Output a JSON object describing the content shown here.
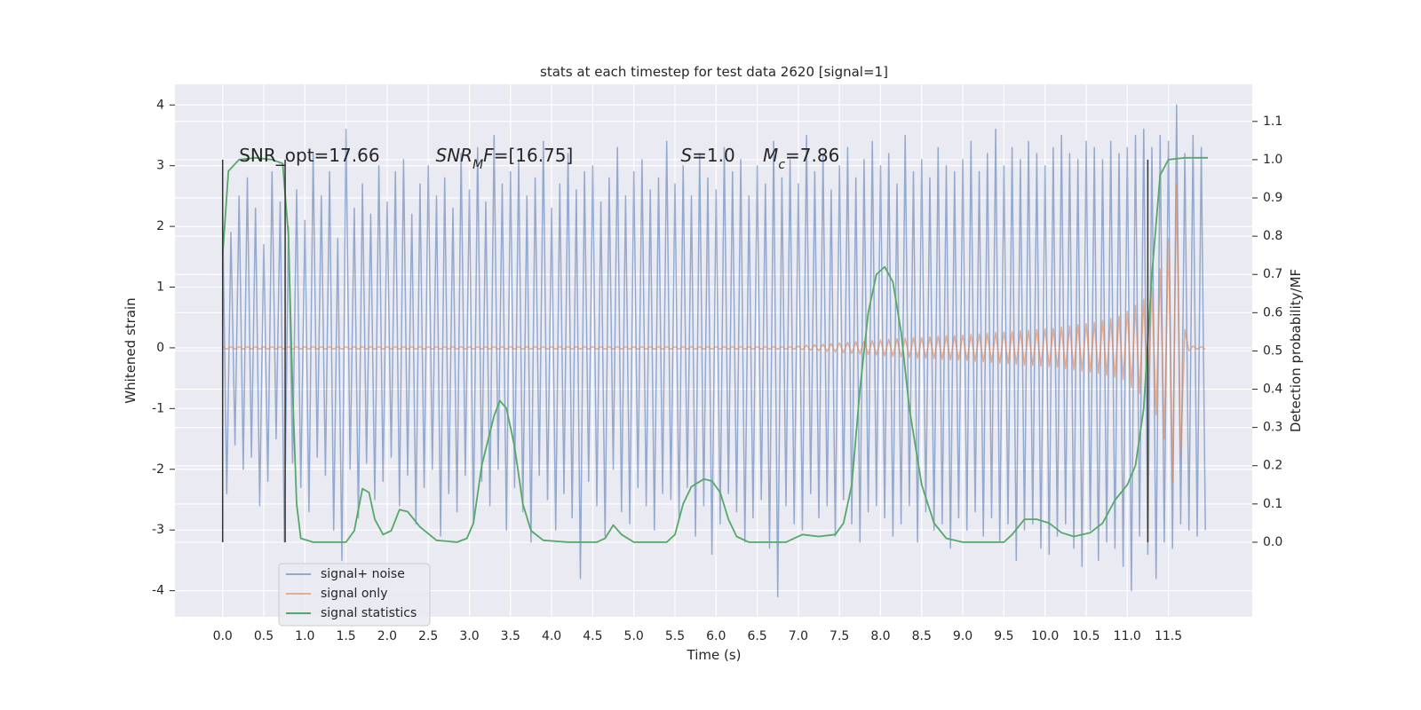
{
  "chart_data": {
    "type": "line",
    "title": "stats at each timestep for test data 2620 [signal=1]",
    "xlabel": "Time (s)",
    "ylabel": "Whitened strain",
    "y2label": "Detection probability/MF",
    "background": "#eaeaf2",
    "grid": true,
    "legend": "lower left",
    "xlim": [
      -0.58,
      12.52
    ],
    "ylim": [
      -4.43,
      4.34
    ],
    "y2lim": [
      -0.195,
      1.197
    ],
    "xticks": [
      {
        "value": 0,
        "label": "0.0"
      },
      0.5,
      {
        "value": 1,
        "label": "1.0"
      },
      1.5,
      {
        "value": 2,
        "label": "2.0"
      },
      2.5,
      {
        "value": 3,
        "label": "3.0"
      },
      3.5,
      {
        "value": 4,
        "label": "4.0"
      },
      4.5,
      {
        "value": 5,
        "label": "5.0"
      },
      5.5,
      {
        "value": 6,
        "label": "6.0"
      },
      6.5,
      {
        "value": 7,
        "label": "7.0"
      },
      7.5,
      {
        "value": 8,
        "label": "8.0"
      },
      8.5,
      {
        "value": 9,
        "label": "9.0"
      },
      9.5,
      {
        "value": 10,
        "label": "10.0"
      },
      10.5,
      {
        "value": 11,
        "label": "11.0"
      },
      11.5
    ],
    "yticks": [
      -4,
      -3,
      -2,
      -1,
      0,
      1,
      2,
      3,
      4
    ],
    "y2ticks": [
      {
        "value": 0,
        "label": "0.0"
      },
      0.1,
      0.2,
      0.3,
      0.4,
      0.5,
      0.6,
      0.7,
      0.8,
      0.9,
      {
        "value": 1,
        "label": "1.0"
      },
      1.1
    ],
    "x": [
      0,
      0.05,
      0.1,
      0.15,
      0.2,
      0.25,
      0.3,
      0.35,
      0.4,
      0.45,
      0.5,
      0.55,
      0.6,
      0.65,
      0.7,
      0.75,
      0.8,
      0.85,
      0.9,
      0.95,
      1,
      1.05,
      1.1,
      1.15,
      1.2,
      1.25,
      1.3,
      1.35,
      1.4,
      1.45,
      1.5,
      1.55,
      1.6,
      1.65,
      1.7,
      1.75,
      1.8,
      1.85,
      1.9,
      1.95,
      2,
      2.05,
      2.1,
      2.15,
      2.2,
      2.25,
      2.3,
      2.35,
      2.4,
      2.45,
      2.5,
      2.55,
      2.6,
      2.65,
      2.7,
      2.75,
      2.8,
      2.85,
      2.9,
      2.95,
      3,
      3.05,
      3.1,
      3.15,
      3.2,
      3.25,
      3.3,
      3.35,
      3.4,
      3.45,
      3.5,
      3.55,
      3.6,
      3.65,
      3.7,
      3.75,
      3.8,
      3.85,
      3.9,
      3.95,
      4,
      4.05,
      4.1,
      4.15,
      4.2,
      4.25,
      4.3,
      4.35,
      4.4,
      4.45,
      4.5,
      4.55,
      4.6,
      4.65,
      4.7,
      4.75,
      4.8,
      4.85,
      4.9,
      4.95,
      5,
      5.05,
      5.1,
      5.15,
      5.2,
      5.25,
      5.3,
      5.35,
      5.4,
      5.45,
      5.5,
      5.55,
      5.6,
      5.65,
      5.7,
      5.75,
      5.8,
      5.85,
      5.9,
      5.95,
      6,
      6.05,
      6.1,
      6.15,
      6.2,
      6.25,
      6.3,
      6.35,
      6.4,
      6.45,
      6.5,
      6.55,
      6.6,
      6.65,
      6.7,
      6.75,
      6.8,
      6.85,
      6.9,
      6.95,
      7,
      7.05,
      7.1,
      7.15,
      7.2,
      7.25,
      7.3,
      7.35,
      7.4,
      7.45,
      7.5,
      7.55,
      7.6,
      7.65,
      7.7,
      7.75,
      7.8,
      7.85,
      7.9,
      7.95,
      8,
      8.05,
      8.1,
      8.15,
      8.2,
      8.25,
      8.3,
      8.35,
      8.4,
      8.45,
      8.5,
      8.55,
      8.6,
      8.65,
      8.7,
      8.75,
      8.8,
      8.85,
      8.9,
      8.95,
      9,
      9.05,
      9.1,
      9.15,
      9.2,
      9.25,
      9.3,
      9.35,
      9.4,
      9.45,
      9.5,
      9.55,
      9.6,
      9.65,
      9.7,
      9.75,
      9.8,
      9.85,
      9.9,
      9.95,
      10,
      10.05,
      10.1,
      10.15,
      10.2,
      10.25,
      10.3,
      10.35,
      10.4,
      10.45,
      10.5,
      10.55,
      10.6,
      10.65,
      10.7,
      10.75,
      10.8,
      10.85,
      10.9,
      10.95,
      11,
      11.05,
      11.1,
      11.15,
      11.2,
      11.25,
      11.3,
      11.35,
      11.4,
      11.45,
      11.5,
      11.55,
      11.6,
      11.65,
      11.7,
      11.75,
      11.8,
      11.85,
      11.9,
      11.95
    ],
    "series": [
      {
        "name": "signal+ noise",
        "color": "#4c72b0",
        "opacity": 0.55,
        "values": [
          2.2,
          -2.4,
          1.9,
          -1.6,
          2.5,
          -2.0,
          2.8,
          -1.8,
          2.3,
          -2.6,
          1.7,
          -2.2,
          2.9,
          -1.5,
          2.4,
          -3.2,
          2.0,
          -1.9,
          2.6,
          -2.3,
          2.1,
          -2.7,
          3.2,
          -1.8,
          2.5,
          -2.1,
          2.9,
          -3.0,
          1.8,
          -3.5,
          3.6,
          -2.0,
          2.3,
          -2.8,
          2.7,
          -1.9,
          2.2,
          -2.5,
          3.0,
          -2.2,
          2.4,
          -1.8,
          2.9,
          -2.6,
          3.1,
          -2.1,
          2.2,
          -2.9,
          2.7,
          -2.3,
          3.0,
          -2.0,
          2.5,
          -3.1,
          2.8,
          -2.4,
          2.3,
          -2.7,
          3.2,
          -2.1,
          2.6,
          -2.9,
          3.3,
          -2.2,
          2.4,
          -2.6,
          3.5,
          -2.0,
          2.7,
          -3.0,
          2.9,
          -2.3,
          3.1,
          -2.7,
          2.5,
          -3.2,
          2.8,
          -2.1,
          3.4,
          -2.5,
          2.3,
          -3.0,
          2.7,
          -2.4,
          3.2,
          -2.8,
          2.6,
          -3.8,
          2.9,
          -2.2,
          3.0,
          -2.6,
          2.4,
          -3.1,
          2.8,
          -2.0,
          3.3,
          -2.7,
          2.5,
          -2.9,
          2.9,
          -2.3,
          3.1,
          -2.6,
          2.6,
          -3.0,
          2.8,
          -2.4,
          3.4,
          -2.5,
          2.7,
          -2.8,
          3.0,
          -2.3,
          2.5,
          -3.1,
          3.2,
          -2.6,
          2.8,
          -3.4,
          2.6,
          -2.9,
          3.3,
          -2.4,
          2.9,
          -2.7,
          3.1,
          -3.2,
          2.5,
          -2.8,
          3.0,
          -2.5,
          2.7,
          -3.3,
          3.4,
          -4.1,
          2.8,
          -2.6,
          3.1,
          -2.9,
          2.7,
          -3.0,
          3.5,
          -2.4,
          2.9,
          -2.8,
          3.2,
          -2.6,
          2.6,
          -3.1,
          3.0,
          -2.5,
          3.3,
          -2.9,
          2.8,
          -3.2,
          3.1,
          -2.7,
          3.4,
          -2.6,
          3.0,
          -2.8,
          3.2,
          -3.1,
          2.7,
          -2.9,
          3.5,
          -2.6,
          2.9,
          -3.2,
          3.1,
          -2.7,
          2.8,
          -3.0,
          3.3,
          -2.9,
          3.0,
          -3.3,
          2.9,
          -2.8,
          3.1,
          -3.0,
          3.4,
          -2.7,
          2.9,
          -3.1,
          3.2,
          -2.8,
          3.6,
          -3.2,
          3.0,
          -2.9,
          3.3,
          -3.5,
          3.1,
          -3.0,
          3.4,
          -2.9,
          3.2,
          -3.3,
          3.0,
          -3.4,
          3.3,
          -3.1,
          3.5,
          -2.9,
          3.2,
          -3.3,
          3.1,
          -3.6,
          3.4,
          -3.0,
          3.3,
          -3.5,
          3.1,
          -3.2,
          3.4,
          -3.3,
          3.2,
          -3.6,
          3.3,
          -4.0,
          3.5,
          -3.1,
          3.6,
          -3.4,
          3.3,
          -3.8,
          3.5,
          -3.2,
          3.4,
          -3.3,
          4.0,
          -2.9,
          3.2,
          -3.0,
          3.5,
          -3.1,
          3.3,
          -3.0
        ]
      },
      {
        "name": "signal only",
        "color": "#dd8452",
        "opacity": 0.6,
        "values": [
          0.02,
          -0.02,
          0.02,
          -0.02,
          0.02,
          -0.02,
          0.02,
          -0.02,
          0.02,
          -0.02,
          0.02,
          -0.02,
          0.02,
          -0.02,
          0.02,
          -0.02,
          0.02,
          -0.02,
          0.02,
          -0.02,
          0.02,
          -0.02,
          0.02,
          -0.02,
          0.02,
          -0.02,
          0.02,
          -0.02,
          0.02,
          -0.02,
          0.02,
          -0.02,
          0.02,
          -0.02,
          0.02,
          -0.02,
          0.02,
          -0.02,
          0.02,
          -0.02,
          0.02,
          -0.02,
          0.02,
          -0.02,
          0.02,
          -0.02,
          0.02,
          -0.02,
          0.02,
          -0.02,
          0.02,
          -0.02,
          0.02,
          -0.02,
          0.02,
          -0.02,
          0.02,
          -0.02,
          0.02,
          -0.02,
          0.02,
          -0.02,
          0.02,
          -0.02,
          0.02,
          -0.02,
          0.02,
          -0.02,
          0.02,
          -0.02,
          0.02,
          -0.02,
          0.02,
          -0.02,
          0.02,
          -0.02,
          0.02,
          -0.02,
          0.02,
          -0.02,
          0.02,
          -0.02,
          0.02,
          -0.02,
          0.02,
          -0.02,
          0.02,
          -0.02,
          0.02,
          -0.02,
          0.02,
          -0.02,
          0.02,
          -0.02,
          0.02,
          -0.02,
          0.02,
          -0.02,
          0.02,
          -0.02,
          0.02,
          -0.02,
          0.02,
          -0.02,
          0.02,
          -0.02,
          0.02,
          -0.02,
          0.02,
          -0.02,
          0.02,
          -0.02,
          0.02,
          -0.02,
          0.02,
          -0.02,
          0.02,
          -0.02,
          0.02,
          -0.02,
          0.02,
          -0.02,
          0.02,
          -0.02,
          0.02,
          -0.02,
          0.02,
          -0.02,
          0.02,
          -0.02,
          0.02,
          -0.02,
          0.02,
          -0.02,
          0.02,
          -0.02,
          0.02,
          -0.02,
          0.02,
          -0.02,
          0.03,
          -0.03,
          0.04,
          -0.04,
          0.05,
          -0.05,
          0.06,
          -0.06,
          0.07,
          -0.07,
          0.08,
          -0.08,
          0.09,
          -0.09,
          0.1,
          -0.1,
          0.11,
          -0.11,
          0.12,
          -0.12,
          0.13,
          -0.13,
          0.14,
          -0.14,
          0.15,
          -0.15,
          0.16,
          -0.16,
          0.17,
          -0.17,
          0.17,
          -0.17,
          0.18,
          -0.18,
          0.19,
          -0.19,
          0.2,
          -0.2,
          0.2,
          -0.2,
          0.21,
          -0.21,
          0.22,
          -0.22,
          0.23,
          -0.23,
          0.24,
          -0.24,
          0.25,
          -0.25,
          0.26,
          -0.26,
          0.27,
          -0.27,
          0.28,
          -0.28,
          0.29,
          -0.29,
          0.3,
          -0.3,
          0.31,
          -0.31,
          0.32,
          -0.32,
          0.34,
          -0.34,
          0.36,
          -0.36,
          0.38,
          -0.38,
          0.4,
          -0.4,
          0.42,
          -0.42,
          0.45,
          -0.45,
          0.48,
          -0.48,
          0.52,
          -0.52,
          0.6,
          -0.65,
          0.7,
          -0.75,
          0.8,
          -0.9,
          1.0,
          -1.1,
          1.3,
          -1.5,
          1.8,
          -2.2,
          2.7,
          -1.8,
          0.3,
          -0.05,
          0.03,
          -0.02,
          0.02,
          -0.02
        ]
      },
      {
        "name": "signal statistics",
        "color": "#55a868",
        "axis": "y2",
        "x": [
          0,
          0.07,
          0.2,
          0.4,
          0.6,
          0.73,
          0.8,
          0.85,
          0.9,
          0.95,
          1.1,
          1.5,
          1.6,
          1.7,
          1.78,
          1.85,
          1.95,
          2.05,
          2.15,
          2.25,
          2.4,
          2.6,
          2.85,
          2.97,
          3.05,
          3.15,
          3.3,
          3.37,
          3.45,
          3.55,
          3.65,
          3.75,
          3.9,
          4.2,
          4.55,
          4.65,
          4.75,
          4.85,
          5,
          5.4,
          5.5,
          5.6,
          5.7,
          5.85,
          5.95,
          6.05,
          6.15,
          6.25,
          6.4,
          6.85,
          6.95,
          7.05,
          7.25,
          7.45,
          7.55,
          7.65,
          7.75,
          7.85,
          7.95,
          8.05,
          8.15,
          8.25,
          8.35,
          8.5,
          8.65,
          8.8,
          9,
          9.5,
          9.6,
          9.75,
          9.9,
          10.05,
          10.2,
          10.35,
          10.55,
          10.7,
          10.85,
          11,
          11.1,
          11.2,
          11.3,
          11.4,
          11.5,
          11.7,
          11.98
        ],
        "values": [
          0.75,
          0.97,
          1.0,
          1.005,
          1.0,
          0.99,
          0.8,
          0.4,
          0.1,
          0.01,
          0.0,
          0.0,
          0.03,
          0.14,
          0.13,
          0.06,
          0.02,
          0.03,
          0.085,
          0.08,
          0.04,
          0.005,
          0.0,
          0.01,
          0.05,
          0.2,
          0.33,
          0.37,
          0.35,
          0.25,
          0.1,
          0.03,
          0.005,
          0.0,
          0.0,
          0.01,
          0.045,
          0.02,
          0.0,
          0.0,
          0.02,
          0.1,
          0.145,
          0.165,
          0.16,
          0.13,
          0.06,
          0.015,
          0.0,
          0.0,
          0.01,
          0.02,
          0.015,
          0.02,
          0.05,
          0.15,
          0.4,
          0.6,
          0.7,
          0.72,
          0.68,
          0.55,
          0.35,
          0.15,
          0.05,
          0.01,
          0.0,
          0.0,
          0.02,
          0.06,
          0.06,
          0.05,
          0.025,
          0.015,
          0.025,
          0.05,
          0.11,
          0.15,
          0.2,
          0.35,
          0.7,
          0.96,
          1.0,
          1.005,
          1.005
        ]
      }
    ],
    "vlines": {
      "x": [
        0,
        0.76,
        11.25
      ],
      "y2": [
        0,
        1
      ],
      "color": "#333333"
    },
    "annotations": [
      {
        "x": 0.2,
        "y": 3.07,
        "parts": [
          {
            "text": "SNR_opt=17.66"
          }
        ]
      },
      {
        "x": 2.59,
        "y": 3.07,
        "parts": [
          {
            "text": "SNR",
            "italic": true
          },
          {
            "text": "M",
            "italic": true,
            "sub": true
          },
          {
            "text": "F",
            "italic": true
          },
          {
            "text": "=[16.75]"
          }
        ]
      },
      {
        "x": 5.57,
        "y": 3.07,
        "parts": [
          {
            "text": "S",
            "italic": true
          },
          {
            "text": "=1.0"
          }
        ]
      },
      {
        "x": 6.57,
        "y": 3.07,
        "parts": [
          {
            "text": "M",
            "italic": true
          },
          {
            "text": "c",
            "italic": true,
            "sub": true
          },
          {
            "text": "=7.86"
          }
        ]
      }
    ]
  }
}
